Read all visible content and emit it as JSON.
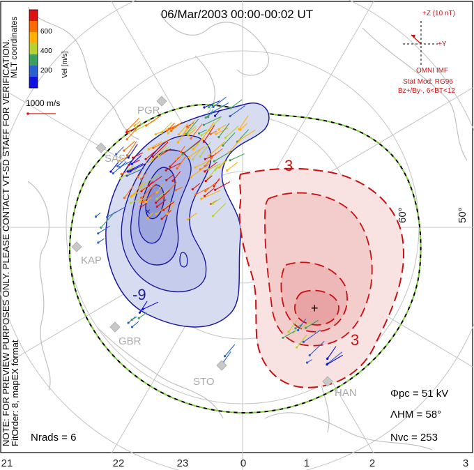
{
  "title": "06/Mar/2003 00:00-00:02 UT",
  "colorbar": {
    "axis_label": "Vel [m/s]",
    "ticks": [
      "600",
      "400",
      "200"
    ],
    "colors": [
      "#e01010",
      "#ff6a00",
      "#ffb000",
      "#b8d030",
      "#3aa060",
      "#2a60d0",
      "#1010e0"
    ]
  },
  "mlt_label": "MLT coordinates",
  "vector_scale": "1000 m/s",
  "imf": {
    "z_label": "+Z (10 nT)",
    "y_label": "+Y",
    "source": "OMNI IMF",
    "model": "Stat Mod: RG96",
    "condition": "Bz+/By-, 6<BT<12"
  },
  "notes": {
    "preview": "NOTE: FOR PREVIEW PURPOSES ONLY. PLEASE CONTACT VT-SD STAFF FOR VERIFICATION.",
    "fit": "FitOrder: 8, mapEX format"
  },
  "stats": {
    "phi_pc": "Φpc = 51 kV",
    "lambda_hm": "ΛHM = 58°",
    "n_vc": "Nvc = 253",
    "n_rads": "Nrads = 6"
  },
  "lat_labels": [
    "60°",
    "50°"
  ],
  "mlt_ticks": [
    "21",
    "22",
    "23",
    "0",
    "1",
    "2",
    "3"
  ],
  "sites": [
    "PGR",
    "SAS",
    "KAP",
    "GBR",
    "STO",
    "HAN"
  ],
  "contour_labels": [
    "-9",
    "3",
    "3"
  ],
  "colors": {
    "negative_cell": "#1a1aa0",
    "positive_cell": "#cc1010",
    "hma_boundary": "#77cc33",
    "grid": "#c8c8c8",
    "coast": "#c0c0c0"
  }
}
